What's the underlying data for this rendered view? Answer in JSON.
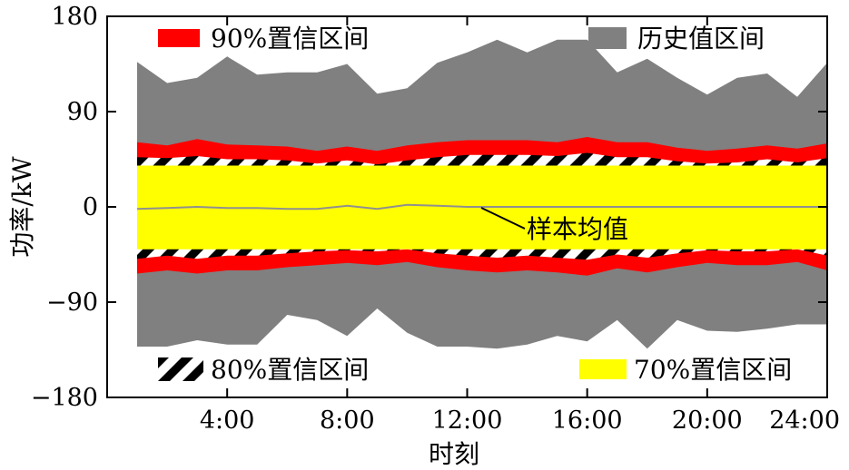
{
  "chart_data": {
    "type": "area",
    "xlabel": "时刻",
    "ylabel": "功率/kW",
    "xlim": [
      0,
      24
    ],
    "ylim": [
      -180,
      180
    ],
    "grid": false,
    "x_ticks": [
      {
        "value": 4,
        "label": "4:00"
      },
      {
        "value": 8,
        "label": "8:00"
      },
      {
        "value": 12,
        "label": "12:00"
      },
      {
        "value": 16,
        "label": "16:00"
      },
      {
        "value": 20,
        "label": "20:00"
      },
      {
        "value": 24,
        "label": "24:00"
      }
    ],
    "y_ticks": [
      {
        "value": 180,
        "label": "180"
      },
      {
        "value": 90,
        "label": "90"
      },
      {
        "value": 0,
        "label": "0"
      },
      {
        "value": -90,
        "label": "−90"
      },
      {
        "value": -180,
        "label": "−180"
      }
    ],
    "x": [
      1,
      2,
      3,
      4,
      5,
      6,
      7,
      8,
      9,
      10,
      11,
      12,
      13,
      14,
      15,
      16,
      17,
      18,
      19,
      20,
      21,
      22,
      23,
      24
    ],
    "series": [
      {
        "name": "历史值区间",
        "color": "#808080",
        "upper": [
          137,
          117,
          122,
          142,
          125,
          127,
          127,
          135,
          107,
          112,
          136,
          146,
          158,
          146,
          158,
          158,
          127,
          140,
          122,
          106,
          122,
          126,
          104,
          136
        ],
        "lower": [
          -132,
          -132,
          -126,
          -130,
          -130,
          -102,
          -107,
          -122,
          -96,
          -119,
          -132,
          -132,
          -134,
          -130,
          -122,
          -127,
          -107,
          -134,
          -107,
          -117,
          -118,
          -115,
          -111,
          -111
        ]
      },
      {
        "name": "90%置信区间",
        "color": "#ff0000",
        "upper": [
          61,
          58,
          64,
          59,
          58,
          57,
          53,
          57,
          53,
          58,
          61,
          63,
          63,
          63,
          61,
          66,
          61,
          61,
          56,
          53,
          55,
          58,
          55,
          60
        ],
        "lower": [
          -63,
          -60,
          -63,
          -60,
          -60,
          -57,
          -55,
          -53,
          -55,
          -52,
          -57,
          -60,
          -62,
          -60,
          -62,
          -65,
          -58,
          -62,
          -57,
          -53,
          -55,
          -55,
          -52,
          -60
        ]
      },
      {
        "name": "80%置信区间",
        "pattern": "hatch",
        "upper": [
          47,
          46,
          48,
          45,
          45,
          44,
          41,
          44,
          40,
          44,
          47,
          49,
          49,
          49,
          48,
          51,
          47,
          47,
          43,
          41,
          42,
          45,
          42,
          46
        ],
        "lower": [
          -49,
          -46,
          -49,
          -46,
          -46,
          -44,
          -42,
          -41,
          -42,
          -40,
          -44,
          -46,
          -48,
          -46,
          -48,
          -50,
          -45,
          -48,
          -44,
          -41,
          -42,
          -42,
          -40,
          -46
        ]
      },
      {
        "name": "70%置信区间",
        "color": "#ffff00",
        "upper": [
          39,
          39,
          39,
          39,
          39,
          39,
          39,
          39,
          39,
          39,
          39,
          39,
          39,
          39,
          39,
          39,
          39,
          39,
          39,
          39,
          39,
          39,
          39,
          39
        ],
        "lower": [
          -40,
          -40,
          -40,
          -40,
          -40,
          -40,
          -40,
          -40,
          -40,
          -40,
          -40,
          -40,
          -40,
          -40,
          -40,
          -40,
          -40,
          -40,
          -40,
          -40,
          -40,
          -40,
          -40,
          -40
        ]
      },
      {
        "name": "样本均值",
        "color": "#909090",
        "values": [
          -2,
          -1,
          0,
          -1,
          -1,
          -2,
          -2,
          1,
          -2,
          2,
          1,
          0,
          0,
          0,
          0,
          0,
          0,
          0,
          0,
          0,
          0,
          0,
          0,
          0
        ]
      }
    ],
    "legend": [
      {
        "label": "90%置信区间",
        "swatch": "red",
        "position": "top-left"
      },
      {
        "label": "历史值区间",
        "swatch": "gray",
        "position": "top-right"
      },
      {
        "label": "80%置信区间",
        "swatch": "hatch",
        "position": "bottom-left"
      },
      {
        "label": "70%置信区间",
        "swatch": "yellow",
        "position": "bottom-right"
      }
    ],
    "annotation": {
      "text": "样本均值",
      "x": 13,
      "y": 0
    }
  }
}
